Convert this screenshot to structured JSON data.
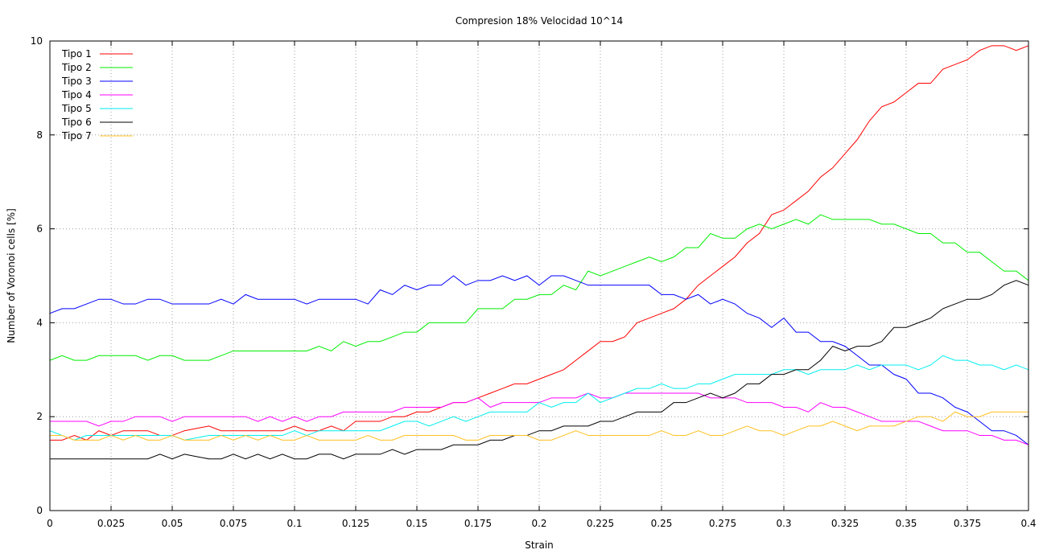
{
  "chart_data": {
    "type": "line",
    "title": "Compresion 18% Velocidad 10^14",
    "xlabel": "Strain",
    "ylabel": "Number of Voronoi cells [%]",
    "xlim": [
      0,
      0.4
    ],
    "ylim": [
      0,
      10
    ],
    "xticks": [
      "0",
      "0.025",
      "0.05",
      "0.075",
      "0.1",
      "0.125",
      "0.15",
      "0.175",
      "0.2",
      "0.225",
      "0.25",
      "0.275",
      "0.3",
      "0.325",
      "0.35",
      "0.375",
      "0.4"
    ],
    "yticks": [
      "0",
      "2",
      "4",
      "6",
      "8",
      "10"
    ],
    "grid": true,
    "legend": "top-left",
    "x": [
      0,
      0.005,
      0.01,
      0.015,
      0.02,
      0.025,
      0.03,
      0.035,
      0.04,
      0.045,
      0.05,
      0.055,
      0.06,
      0.065,
      0.07,
      0.075,
      0.08,
      0.085,
      0.09,
      0.095,
      0.1,
      0.105,
      0.11,
      0.115,
      0.12,
      0.125,
      0.13,
      0.135,
      0.14,
      0.145,
      0.15,
      0.155,
      0.16,
      0.165,
      0.17,
      0.175,
      0.18,
      0.185,
      0.19,
      0.195,
      0.2,
      0.205,
      0.21,
      0.215,
      0.22,
      0.225,
      0.23,
      0.235,
      0.24,
      0.245,
      0.25,
      0.255,
      0.26,
      0.265,
      0.27,
      0.275,
      0.28,
      0.285,
      0.29,
      0.295,
      0.3,
      0.305,
      0.31,
      0.315,
      0.32,
      0.325,
      0.33,
      0.335,
      0.34,
      0.345,
      0.35,
      0.355,
      0.36,
      0.365,
      0.37,
      0.375,
      0.38,
      0.385,
      0.39,
      0.395,
      0.4
    ],
    "series": [
      {
        "name": "Tipo 1",
        "color": "#ff0000",
        "values": [
          1.5,
          1.5,
          1.6,
          1.5,
          1.7,
          1.6,
          1.7,
          1.7,
          1.7,
          1.6,
          1.6,
          1.7,
          1.75,
          1.8,
          1.7,
          1.7,
          1.7,
          1.7,
          1.7,
          1.7,
          1.8,
          1.7,
          1.7,
          1.8,
          1.7,
          1.9,
          1.9,
          1.9,
          2.0,
          2.0,
          2.1,
          2.1,
          2.2,
          2.3,
          2.3,
          2.4,
          2.5,
          2.6,
          2.7,
          2.7,
          2.8,
          2.9,
          3.0,
          3.2,
          3.4,
          3.6,
          3.6,
          3.7,
          4.0,
          4.1,
          4.2,
          4.3,
          4.5,
          4.8,
          5.0,
          5.2,
          5.4,
          5.7,
          5.9,
          6.3,
          6.4,
          6.6,
          6.8,
          7.1,
          7.3,
          7.6,
          7.9,
          8.3,
          8.6,
          8.7,
          8.9,
          9.1,
          9.1,
          9.4,
          9.5,
          9.6,
          9.8,
          9.9,
          9.9,
          9.8,
          9.9
        ]
      },
      {
        "name": "Tipo 2",
        "color": "#00ee00",
        "values": [
          3.2,
          3.3,
          3.2,
          3.2,
          3.3,
          3.3,
          3.3,
          3.3,
          3.2,
          3.3,
          3.3,
          3.2,
          3.2,
          3.2,
          3.3,
          3.4,
          3.4,
          3.4,
          3.4,
          3.4,
          3.4,
          3.4,
          3.5,
          3.4,
          3.6,
          3.5,
          3.6,
          3.6,
          3.7,
          3.8,
          3.8,
          4.0,
          4.0,
          4.0,
          4.0,
          4.3,
          4.3,
          4.3,
          4.5,
          4.5,
          4.6,
          4.6,
          4.8,
          4.7,
          5.1,
          5.0,
          5.1,
          5.2,
          5.3,
          5.4,
          5.3,
          5.4,
          5.6,
          5.6,
          5.9,
          5.8,
          5.8,
          6.0,
          6.1,
          6.0,
          6.1,
          6.2,
          6.1,
          6.3,
          6.2,
          6.2,
          6.2,
          6.2,
          6.1,
          6.1,
          6.0,
          5.9,
          5.9,
          5.7,
          5.7,
          5.5,
          5.5,
          5.3,
          5.1,
          5.1,
          4.9
        ]
      },
      {
        "name": "Tipo 3",
        "color": "#0000ff",
        "values": [
          4.2,
          4.3,
          4.3,
          4.4,
          4.5,
          4.5,
          4.4,
          4.4,
          4.5,
          4.5,
          4.4,
          4.4,
          4.4,
          4.4,
          4.5,
          4.4,
          4.6,
          4.5,
          4.5,
          4.5,
          4.5,
          4.4,
          4.5,
          4.5,
          4.5,
          4.5,
          4.4,
          4.7,
          4.6,
          4.8,
          4.7,
          4.8,
          4.8,
          5.0,
          4.8,
          4.9,
          4.9,
          5.0,
          4.9,
          5.0,
          4.8,
          5.0,
          5.0,
          4.9,
          4.8,
          4.8,
          4.8,
          4.8,
          4.8,
          4.8,
          4.6,
          4.6,
          4.5,
          4.6,
          4.4,
          4.5,
          4.4,
          4.2,
          4.1,
          3.9,
          4.1,
          3.8,
          3.8,
          3.6,
          3.6,
          3.5,
          3.3,
          3.1,
          3.1,
          2.9,
          2.8,
          2.5,
          2.5,
          2.4,
          2.2,
          2.1,
          1.9,
          1.7,
          1.7,
          1.6,
          1.4
        ]
      },
      {
        "name": "Tipo 4",
        "color": "#ff00ff",
        "values": [
          1.9,
          1.9,
          1.9,
          1.9,
          1.8,
          1.9,
          1.9,
          2.0,
          2.0,
          2.0,
          1.9,
          2.0,
          2.0,
          2.0,
          2.0,
          2.0,
          2.0,
          1.9,
          2.0,
          1.9,
          2.0,
          1.9,
          2.0,
          2.0,
          2.1,
          2.1,
          2.1,
          2.1,
          2.1,
          2.2,
          2.2,
          2.2,
          2.2,
          2.3,
          2.3,
          2.4,
          2.2,
          2.3,
          2.3,
          2.3,
          2.3,
          2.4,
          2.4,
          2.4,
          2.5,
          2.4,
          2.4,
          2.5,
          2.5,
          2.5,
          2.5,
          2.5,
          2.5,
          2.5,
          2.4,
          2.4,
          2.4,
          2.3,
          2.3,
          2.3,
          2.2,
          2.2,
          2.1,
          2.3,
          2.2,
          2.2,
          2.1,
          2.0,
          1.9,
          1.9,
          1.9,
          1.9,
          1.8,
          1.7,
          1.7,
          1.7,
          1.6,
          1.6,
          1.5,
          1.5,
          1.4
        ]
      },
      {
        "name": "Tipo 5",
        "color": "#00eeee",
        "values": [
          1.7,
          1.6,
          1.5,
          1.6,
          1.6,
          1.6,
          1.6,
          1.6,
          1.6,
          1.6,
          1.6,
          1.5,
          1.55,
          1.6,
          1.6,
          1.6,
          1.6,
          1.6,
          1.6,
          1.6,
          1.7,
          1.6,
          1.7,
          1.7,
          1.7,
          1.7,
          1.7,
          1.7,
          1.8,
          1.9,
          1.9,
          1.8,
          1.9,
          2.0,
          1.9,
          2.0,
          2.1,
          2.1,
          2.1,
          2.1,
          2.3,
          2.2,
          2.3,
          2.3,
          2.5,
          2.3,
          2.4,
          2.5,
          2.6,
          2.6,
          2.7,
          2.6,
          2.6,
          2.7,
          2.7,
          2.8,
          2.9,
          2.9,
          2.9,
          2.9,
          3.0,
          3.0,
          2.9,
          3.0,
          3.0,
          3.0,
          3.1,
          3.0,
          3.1,
          3.1,
          3.1,
          3.0,
          3.1,
          3.3,
          3.2,
          3.2,
          3.1,
          3.1,
          3.0,
          3.1,
          3.0
        ]
      },
      {
        "name": "Tipo 6",
        "color": "#000000",
        "values": [
          1.1,
          1.1,
          1.1,
          1.1,
          1.1,
          1.1,
          1.1,
          1.1,
          1.1,
          1.2,
          1.1,
          1.2,
          1.15,
          1.1,
          1.1,
          1.2,
          1.1,
          1.2,
          1.1,
          1.2,
          1.1,
          1.1,
          1.2,
          1.2,
          1.1,
          1.2,
          1.2,
          1.2,
          1.3,
          1.2,
          1.3,
          1.3,
          1.3,
          1.4,
          1.4,
          1.4,
          1.5,
          1.5,
          1.6,
          1.6,
          1.7,
          1.7,
          1.8,
          1.8,
          1.8,
          1.9,
          1.9,
          2.0,
          2.1,
          2.1,
          2.1,
          2.3,
          2.3,
          2.4,
          2.5,
          2.4,
          2.5,
          2.7,
          2.7,
          2.9,
          2.9,
          3.0,
          3.0,
          3.2,
          3.5,
          3.4,
          3.5,
          3.5,
          3.6,
          3.9,
          3.9,
          4.0,
          4.1,
          4.3,
          4.4,
          4.5,
          4.5,
          4.6,
          4.8,
          4.9,
          4.8
        ]
      },
      {
        "name": "Tipo 7",
        "color": "#ffc020",
        "values": [
          1.6,
          1.6,
          1.5,
          1.5,
          1.5,
          1.6,
          1.5,
          1.6,
          1.5,
          1.5,
          1.6,
          1.5,
          1.5,
          1.5,
          1.6,
          1.5,
          1.6,
          1.5,
          1.6,
          1.5,
          1.5,
          1.6,
          1.5,
          1.5,
          1.5,
          1.5,
          1.6,
          1.5,
          1.5,
          1.6,
          1.6,
          1.6,
          1.6,
          1.6,
          1.5,
          1.5,
          1.6,
          1.6,
          1.6,
          1.6,
          1.5,
          1.5,
          1.6,
          1.7,
          1.6,
          1.6,
          1.6,
          1.6,
          1.6,
          1.6,
          1.7,
          1.6,
          1.6,
          1.7,
          1.6,
          1.6,
          1.7,
          1.8,
          1.7,
          1.7,
          1.6,
          1.7,
          1.8,
          1.8,
          1.9,
          1.8,
          1.7,
          1.8,
          1.8,
          1.8,
          1.9,
          2.0,
          2.0,
          1.9,
          2.1,
          2.0,
          2.0,
          2.1,
          2.1,
          2.1,
          2.1
        ]
      }
    ]
  }
}
